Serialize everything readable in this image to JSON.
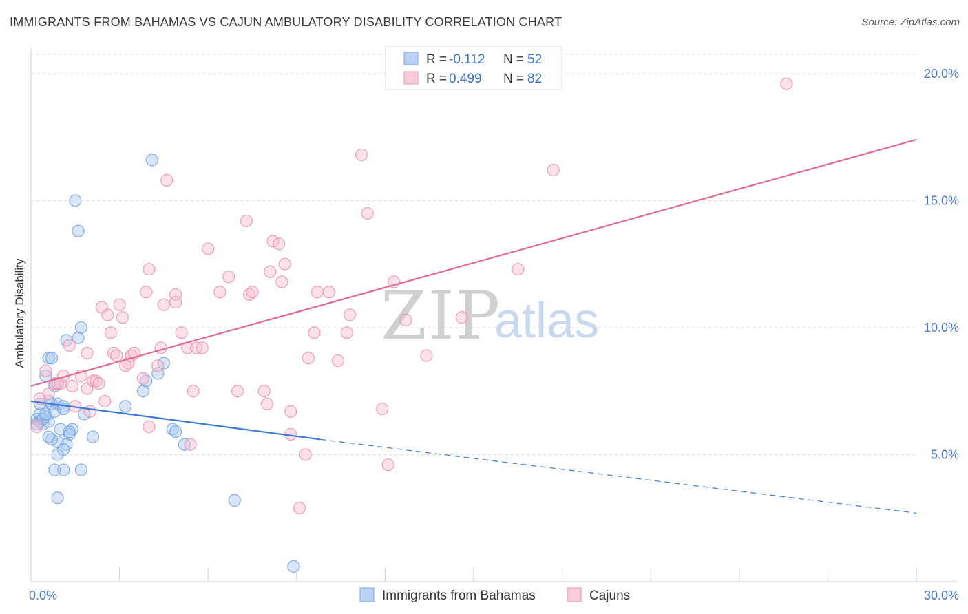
{
  "title": "IMMIGRANTS FROM BAHAMAS VS CAJUN AMBULATORY DISABILITY CORRELATION CHART",
  "source": "Source: ZipAtlas.com",
  "watermark": {
    "zip": "ZIP",
    "atlas": "atlas"
  },
  "chart_data": {
    "type": "scatter",
    "ylabel": "Ambulatory Disability",
    "xlim": [
      0,
      30
    ],
    "ylim": [
      0,
      21
    ],
    "x_tick_labels": [
      {
        "value": 0,
        "label": "0.0%"
      },
      {
        "value": 30,
        "label": "30.0%"
      }
    ],
    "y_ticks": [
      {
        "value": 5,
        "label": "5.0%"
      },
      {
        "value": 10,
        "label": "10.0%"
      },
      {
        "value": 15,
        "label": "15.0%"
      },
      {
        "value": 20,
        "label": "20.0%"
      }
    ],
    "grid": true,
    "legend_position": "top-center",
    "legend": [
      {
        "r_label": "R =",
        "r_value": "-0.112",
        "n_label": "N =",
        "n_value": "52"
      },
      {
        "r_label": "R =",
        "r_value": "0.499",
        "n_label": "N =",
        "n_value": "82"
      }
    ],
    "bottom_legend": [
      "Immigrants from Bahamas",
      "Cajuns"
    ],
    "series": [
      {
        "name": "Immigrants from Bahamas",
        "color": "#6a9be0",
        "fill": "#a9c7f0",
        "trend": {
          "x0": 0,
          "y0": 7.1,
          "x1": 9.8,
          "y1": 5.6,
          "dash_to_x": 30,
          "dash_to_y": 2.7,
          "color": "#3a7bd5"
        },
        "points": [
          [
            0.2,
            6.4
          ],
          [
            0.3,
            6.3
          ],
          [
            0.4,
            6.2
          ],
          [
            0.5,
            6.5
          ],
          [
            0.3,
            6.6
          ],
          [
            0.6,
            6.3
          ],
          [
            0.2,
            6.2
          ],
          [
            0.4,
            6.4
          ],
          [
            0.5,
            6.6
          ],
          [
            0.7,
            7.0
          ],
          [
            0.9,
            7.0
          ],
          [
            1.1,
            6.9
          ],
          [
            0.6,
            7.1
          ],
          [
            0.8,
            6.7
          ],
          [
            1.0,
            6.0
          ],
          [
            1.4,
            6.0
          ],
          [
            1.3,
            5.8
          ],
          [
            1.2,
            5.4
          ],
          [
            0.9,
            5.5
          ],
          [
            0.7,
            5.6
          ],
          [
            0.6,
            5.7
          ],
          [
            1.1,
            5.2
          ],
          [
            0.9,
            5.0
          ],
          [
            1.8,
            6.6
          ],
          [
            2.1,
            5.7
          ],
          [
            3.2,
            6.9
          ],
          [
            3.8,
            7.5
          ],
          [
            4.3,
            8.2
          ],
          [
            4.5,
            8.6
          ],
          [
            3.9,
            7.9
          ],
          [
            4.8,
            6.0
          ],
          [
            4.9,
            5.9
          ],
          [
            5.2,
            5.4
          ],
          [
            1.5,
            15.0
          ],
          [
            1.6,
            13.8
          ],
          [
            4.1,
            16.6
          ],
          [
            1.6,
            9.6
          ],
          [
            1.7,
            10.0
          ],
          [
            1.2,
            9.5
          ],
          [
            0.6,
            8.8
          ],
          [
            0.7,
            8.8
          ],
          [
            0.5,
            8.1
          ],
          [
            0.8,
            7.7
          ],
          [
            1.1,
            4.4
          ],
          [
            1.7,
            4.4
          ],
          [
            0.9,
            3.3
          ],
          [
            6.9,
            3.2
          ],
          [
            8.9,
            0.6
          ],
          [
            1.1,
            6.8
          ],
          [
            0.3,
            7.0
          ],
          [
            1.3,
            5.9
          ],
          [
            0.8,
            4.4
          ]
        ]
      },
      {
        "name": "Cajuns",
        "color": "#e88aa8",
        "fill": "#f7bfd0",
        "trend": {
          "x0": 0,
          "y0": 7.7,
          "x1": 30,
          "y1": 17.4,
          "color": "#e06a95"
        },
        "points": [
          [
            0.2,
            6.1
          ],
          [
            0.3,
            7.2
          ],
          [
            0.5,
            8.3
          ],
          [
            0.6,
            7.4
          ],
          [
            0.8,
            7.8
          ],
          [
            1.0,
            7.8
          ],
          [
            1.1,
            8.1
          ],
          [
            1.3,
            9.3
          ],
          [
            1.5,
            6.9
          ],
          [
            1.7,
            8.1
          ],
          [
            1.9,
            9.0
          ],
          [
            1.9,
            7.6
          ],
          [
            2.0,
            6.7
          ],
          [
            2.1,
            7.9
          ],
          [
            2.2,
            7.9
          ],
          [
            2.3,
            7.8
          ],
          [
            2.5,
            7.1
          ],
          [
            2.4,
            10.8
          ],
          [
            2.6,
            10.5
          ],
          [
            2.8,
            9.0
          ],
          [
            2.9,
            8.9
          ],
          [
            3.1,
            10.4
          ],
          [
            3.3,
            8.6
          ],
          [
            3.0,
            10.9
          ],
          [
            3.2,
            8.5
          ],
          [
            3.4,
            8.9
          ],
          [
            3.5,
            9.0
          ],
          [
            3.8,
            8.0
          ],
          [
            3.9,
            11.4
          ],
          [
            4.0,
            6.1
          ],
          [
            4.0,
            12.3
          ],
          [
            4.3,
            8.5
          ],
          [
            4.4,
            9.2
          ],
          [
            4.5,
            10.9
          ],
          [
            4.6,
            15.8
          ],
          [
            4.9,
            11.3
          ],
          [
            4.9,
            11.0
          ],
          [
            5.1,
            9.8
          ],
          [
            5.3,
            9.2
          ],
          [
            5.5,
            7.5
          ],
          [
            5.6,
            9.2
          ],
          [
            5.8,
            9.2
          ],
          [
            5.4,
            5.4
          ],
          [
            6.0,
            13.1
          ],
          [
            6.4,
            11.4
          ],
          [
            6.7,
            12.0
          ],
          [
            7.0,
            7.5
          ],
          [
            7.3,
            14.2
          ],
          [
            7.4,
            11.3
          ],
          [
            7.5,
            11.4
          ],
          [
            7.9,
            7.5
          ],
          [
            8.0,
            7.0
          ],
          [
            8.1,
            12.2
          ],
          [
            8.2,
            13.4
          ],
          [
            8.4,
            13.3
          ],
          [
            8.5,
            11.8
          ],
          [
            8.6,
            12.5
          ],
          [
            8.8,
            6.7
          ],
          [
            8.8,
            5.8
          ],
          [
            9.1,
            2.9
          ],
          [
            9.3,
            5.0
          ],
          [
            9.4,
            8.8
          ],
          [
            9.6,
            9.8
          ],
          [
            9.7,
            11.4
          ],
          [
            10.1,
            11.4
          ],
          [
            10.4,
            8.7
          ],
          [
            10.7,
            9.8
          ],
          [
            10.8,
            10.5
          ],
          [
            11.2,
            16.8
          ],
          [
            11.4,
            14.5
          ],
          [
            11.9,
            6.8
          ],
          [
            12.1,
            4.6
          ],
          [
            12.3,
            11.8
          ],
          [
            12.7,
            10.3
          ],
          [
            13.4,
            8.9
          ],
          [
            14.6,
            10.4
          ],
          [
            16.5,
            12.3
          ],
          [
            17.7,
            16.2
          ],
          [
            25.6,
            19.6
          ],
          [
            0.9,
            7.8
          ],
          [
            1.4,
            7.7
          ],
          [
            2.7,
            9.8
          ]
        ]
      }
    ]
  }
}
